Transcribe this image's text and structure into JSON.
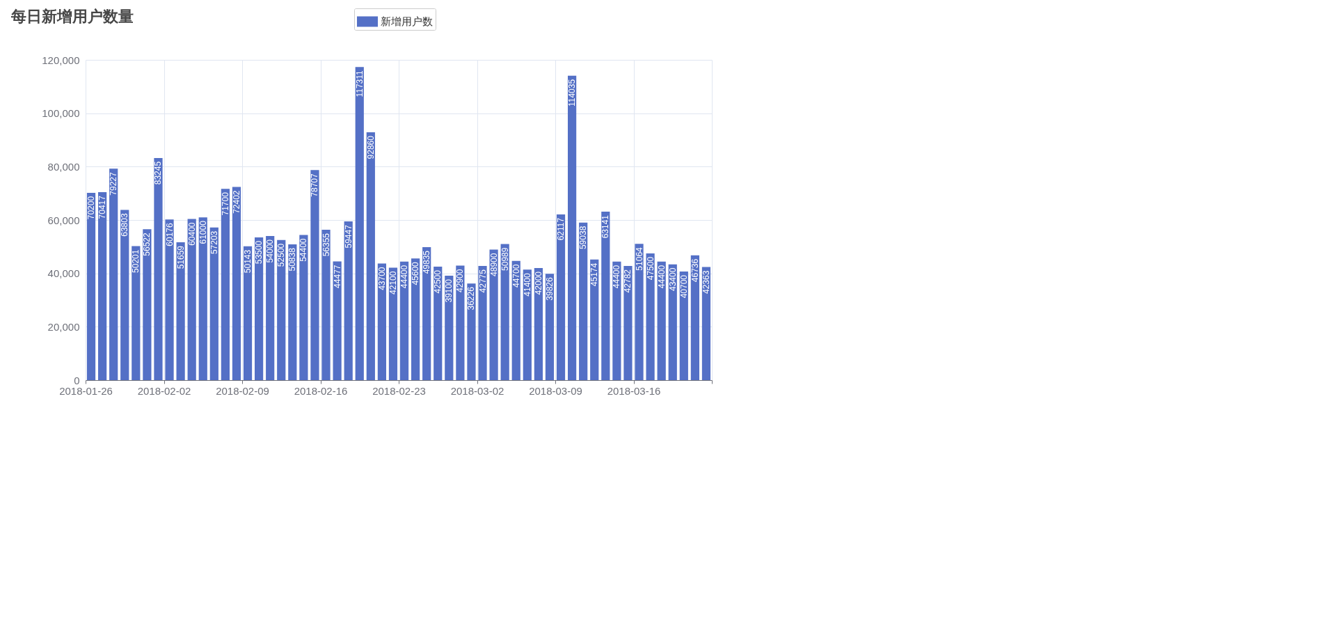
{
  "chart_data": {
    "type": "bar",
    "title": "每日新增用户数量",
    "x": [
      "2018-01-26T12:00",
      "2018-01-27T12:00",
      "2018-01-28T12:00",
      "2018-01-29T12:00",
      "2018-01-30T12:00",
      "2018-01-31T12:00",
      "2018-02-01T12:00",
      "2018-02-02T12:00",
      "2018-02-03T12:00",
      "2018-02-04T12:00",
      "2018-02-05T12:00",
      "2018-02-06T12:00",
      "2018-02-07T12:00",
      "2018-02-08T12:00",
      "2018-02-09T12:00",
      "2018-02-10T12:00",
      "2018-02-11T12:00",
      "2018-02-12T12:00",
      "2018-02-13T12:00",
      "2018-02-14T12:00",
      "2018-02-15T12:00",
      "2018-02-16T12:00",
      "2018-02-17T12:00",
      "2018-02-18T12:00",
      "2018-02-19T12:00",
      "2018-02-20T12:00",
      "2018-02-21T12:00",
      "2018-02-22T12:00",
      "2018-02-23T12:00",
      "2018-02-24T12:00",
      "2018-02-25T12:00",
      "2018-02-26T12:00",
      "2018-02-27T12:00",
      "2018-02-28T12:00",
      "2018-03-01T12:00",
      "2018-03-02T12:00",
      "2018-03-03T12:00",
      "2018-03-04T12:00",
      "2018-03-05T12:00",
      "2018-03-06T12:00",
      "2018-03-07T12:00",
      "2018-03-08T12:00",
      "2018-03-09T12:00",
      "2018-03-10T12:00",
      "2018-03-11T12:00",
      "2018-03-12T12:00",
      "2018-03-13T12:00",
      "2018-03-14T12:00",
      "2018-03-15T12:00",
      "2018-03-16T12:00",
      "2018-03-17T12:00",
      "2018-03-18T12:00",
      "2018-03-19T12:00",
      "2018-03-20T12:00",
      "2018-03-21T12:00",
      "2018-03-22T12:00"
    ],
    "series": [
      {
        "name": "新增用户数",
        "color": "#5470c6",
        "values": [
          70200,
          70417,
          79227,
          63803,
          50201,
          56522,
          83245,
          60176,
          51659,
          60400,
          61000,
          57203,
          71700,
          72402,
          50143,
          53500,
          54000,
          52500,
          50838,
          54400,
          78707,
          56355,
          44477,
          59447,
          117311,
          92860,
          43700,
          42100,
          44400,
          45600,
          49835,
          42500,
          39100,
          42900,
          36226,
          42775,
          48900,
          50989,
          44700,
          41400,
          42000,
          39826,
          62117,
          114035,
          59038,
          45174,
          63141,
          44400,
          42782,
          51064,
          47500,
          44400,
          43400,
          40700,
          46736,
          42363
        ]
      }
    ],
    "xlim": [
      "2018-01-26",
      "2018-03-23"
    ],
    "xticks": [
      "2018-01-26",
      "2018-02-02",
      "2018-02-09",
      "2018-02-16",
      "2018-02-23",
      "2018-03-02",
      "2018-03-09",
      "2018-03-16",
      {
        "value": "2018-03-23",
        "label": null
      }
    ],
    "ylim": [
      0,
      120000
    ],
    "yticks": [
      0,
      {
        "value": 20000,
        "label": "20,000"
      },
      {
        "value": 40000,
        "label": "40,000"
      },
      {
        "value": 60000,
        "label": "60,000"
      },
      {
        "value": 80000,
        "label": "80,000"
      },
      {
        "value": 100000,
        "label": "100,000"
      },
      {
        "value": 120000,
        "label": "120,000"
      }
    ],
    "grid": true,
    "legend": "top",
    "data_labels": true
  }
}
